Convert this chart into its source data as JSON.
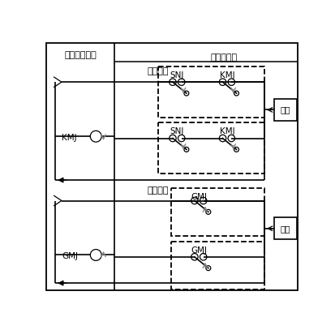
{
  "fig_width": 4.14,
  "fig_height": 4.07,
  "dpi": 100,
  "bg_color": "#ffffff",
  "title_left": "屏蔽门设备室",
  "title_right": "信号设备室",
  "cmd_open": "开门命令",
  "cmd_close": "关门命令",
  "label_KMJ": "KMJ",
  "label_GMJ": "GMJ",
  "label_SNJ": "SNJ",
  "label_lian_suo": "联锁",
  "gray_arrow": "#888888",
  "black": "#000000",
  "lw_main": 1.2,
  "lw_thin": 0.9
}
